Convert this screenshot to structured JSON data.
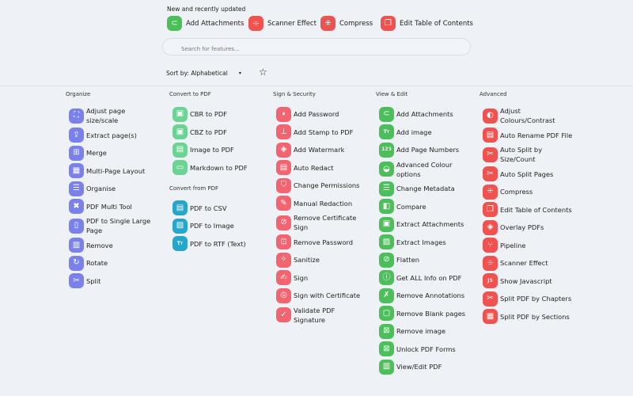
{
  "recent": {
    "label": "New and recently updated",
    "items": [
      {
        "label": "Add Attachments",
        "icon": "paperclip-icon",
        "glyph": "⊂",
        "color": "#4cbf5b"
      },
      {
        "label": "Scanner Effect",
        "icon": "scanner-icon",
        "glyph": "⌯",
        "color": "#ef5350"
      },
      {
        "label": "Compress",
        "icon": "compress-icon",
        "glyph": "⁜",
        "color": "#ef5350"
      },
      {
        "label": "Edit Table of Contents",
        "icon": "toc-icon",
        "glyph": "❐",
        "color": "#ef5350"
      }
    ]
  },
  "search": {
    "placeholder": "Search for features..."
  },
  "sort": {
    "label": "Sort by: Alphabetical"
  },
  "columns": [
    {
      "sections": [
        {
          "title": "Organize",
          "color": "#7b81ea",
          "items": [
            {
              "label": "Adjust page size/scale",
              "glyph": "⛶"
            },
            {
              "label": "Extract page(s)",
              "glyph": "⇪"
            },
            {
              "label": "Merge",
              "glyph": "⊞"
            },
            {
              "label": "Multi-Page Layout",
              "glyph": "▦"
            },
            {
              "label": "Organise",
              "glyph": "☰"
            },
            {
              "label": "PDF Multi Tool",
              "glyph": "✖"
            },
            {
              "label": "PDF to Single Large Page",
              "glyph": "▯"
            },
            {
              "label": "Remove",
              "glyph": "▥"
            },
            {
              "label": "Rotate",
              "glyph": "↻"
            },
            {
              "label": "Split",
              "glyph": "✂"
            }
          ]
        }
      ]
    },
    {
      "sections": [
        {
          "title": "Convert to PDF",
          "color": "#6cd394",
          "items": [
            {
              "label": "CBR to PDF",
              "glyph": "▣"
            },
            {
              "label": "CBZ to PDF",
              "glyph": "▣"
            },
            {
              "label": "Image to PDF",
              "glyph": "▤"
            },
            {
              "label": "Markdown to PDF",
              "glyph": "▭"
            }
          ]
        },
        {
          "title": "Convert from PDF",
          "color": "#27a6ca",
          "items": [
            {
              "label": "PDF to CSV",
              "glyph": "▤"
            },
            {
              "label": "PDF to Image",
              "glyph": "▨"
            },
            {
              "label": "PDF to RTF (Text)",
              "glyph": "Tт"
            }
          ]
        }
      ]
    },
    {
      "sections": [
        {
          "title": "Sign & Security",
          "color": "#f2646f",
          "items": [
            {
              "label": "Add Password",
              "glyph": "🔒︎"
            },
            {
              "label": "Add Stamp to PDF",
              "glyph": "⊥"
            },
            {
              "label": "Add Watermark",
              "glyph": "◈"
            },
            {
              "label": "Auto Redact",
              "glyph": "▤"
            },
            {
              "label": "Change Permissions",
              "glyph": "⛉"
            },
            {
              "label": "Manual Redaction",
              "glyph": "✎"
            },
            {
              "label": "Remove Certificate Sign",
              "glyph": "⊘"
            },
            {
              "label": "Remove Password",
              "glyph": "⊡"
            },
            {
              "label": "Sanitize",
              "glyph": "✧"
            },
            {
              "label": "Sign",
              "glyph": "✍"
            },
            {
              "label": "Sign with Certificate",
              "glyph": "◎"
            },
            {
              "label": "Validate PDF Signature",
              "glyph": "✓"
            }
          ]
        }
      ]
    },
    {
      "sections": [
        {
          "title": "View & Edit",
          "color": "#4cbf5b",
          "items": [
            {
              "label": "Add Attachments",
              "glyph": "⊂"
            },
            {
              "label": "Add image",
              "glyph": "Tт"
            },
            {
              "label": "Add Page Numbers",
              "glyph": "123"
            },
            {
              "label": "Advanced Colour options",
              "glyph": "◒"
            },
            {
              "label": "Change Metadata",
              "glyph": "☰"
            },
            {
              "label": "Compare",
              "glyph": "◧"
            },
            {
              "label": "Extract Attachments",
              "glyph": "▣"
            },
            {
              "label": "Extract Images",
              "glyph": "▨"
            },
            {
              "label": "Flatten",
              "glyph": "⊘"
            },
            {
              "label": "Get ALL Info on PDF",
              "glyph": "ⓘ"
            },
            {
              "label": "Remove Annotations",
              "glyph": "✗"
            },
            {
              "label": "Remove Blank pages",
              "glyph": "▢"
            },
            {
              "label": "Remove image",
              "glyph": "⊠"
            },
            {
              "label": "Unlock PDF Forms",
              "glyph": "⊠"
            },
            {
              "label": "View/Edit PDF",
              "glyph": "▥"
            }
          ]
        }
      ]
    },
    {
      "sections": [
        {
          "title": "Advanced",
          "color": "#ef5350",
          "items": [
            {
              "label": "Adjust Colours/Contrast",
              "glyph": "◐"
            },
            {
              "label": "Auto Rename PDF File",
              "glyph": "▤"
            },
            {
              "label": "Auto Split by Size/Count",
              "glyph": "✂"
            },
            {
              "label": "Auto Split Pages",
              "glyph": "✂"
            },
            {
              "label": "Compress",
              "glyph": "⁜"
            },
            {
              "label": "Edit Table of Contents",
              "glyph": "❐"
            },
            {
              "label": "Overlay PDFs",
              "glyph": "◈"
            },
            {
              "label": "Pipeline",
              "glyph": "⑂"
            },
            {
              "label": "Scanner Effect",
              "glyph": "⌯"
            },
            {
              "label": "Show Javascript",
              "glyph": "JS"
            },
            {
              "label": "Split PDF by Chapters",
              "glyph": "✂"
            },
            {
              "label": "Split PDF by Sections",
              "glyph": "▦"
            }
          ]
        }
      ]
    }
  ]
}
